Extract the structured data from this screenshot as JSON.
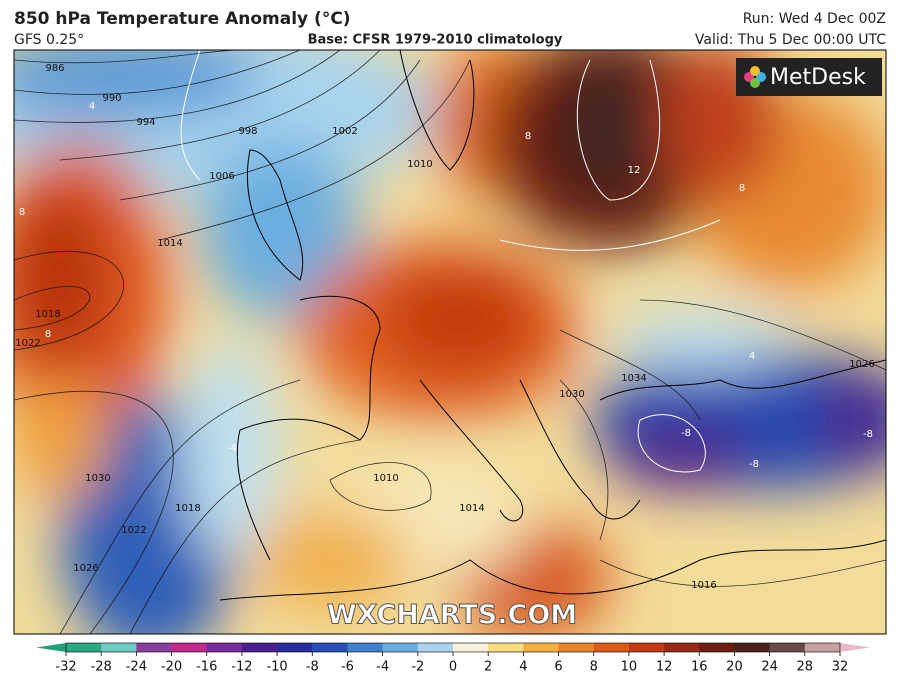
{
  "header": {
    "title": "850 hPa Temperature Anomaly (°C)",
    "model": "GFS 0.25°",
    "base": "Base: CFSR 1979-2010 climatology",
    "run": "Run: Wed 4 Dec 00Z",
    "valid": "Valid: Thu 5 Dec 00:00 UTC"
  },
  "logo": "MetDesk",
  "watermark": "WXCHARTS.COM",
  "isobar_labels": [
    986,
    990,
    994,
    998,
    1002,
    1006,
    1010,
    1014,
    1018,
    1022,
    1030,
    1018,
    1022,
    1026,
    1010,
    1014,
    1016,
    1026,
    1030,
    1034
  ],
  "anomaly_labels": [
    4,
    8,
    8,
    12,
    8,
    8,
    -4,
    4,
    -8,
    -8,
    -8
  ],
  "colorbar": {
    "ticks": [
      -32,
      -28,
      -24,
      -20,
      -16,
      -12,
      -10,
      -8,
      -6,
      -4,
      -2,
      0,
      2,
      4,
      6,
      8,
      10,
      12,
      16,
      20,
      24,
      28,
      32
    ],
    "colors": [
      "#2aa882",
      "#6fc9c0",
      "#8a3f9e",
      "#c02a8f",
      "#7a2a9a",
      "#4a1f8f",
      "#2a2ea0",
      "#2550b8",
      "#3f7fcc",
      "#6aaedf",
      "#aad4ee",
      "#f4f0d8",
      "#f8dc80",
      "#f4b040",
      "#ea8428",
      "#dc5a18",
      "#c23a12",
      "#9a2a12",
      "#6e1e10",
      "#4a2018",
      "#6a4a48",
      "#c7a0a0"
    ]
  }
}
